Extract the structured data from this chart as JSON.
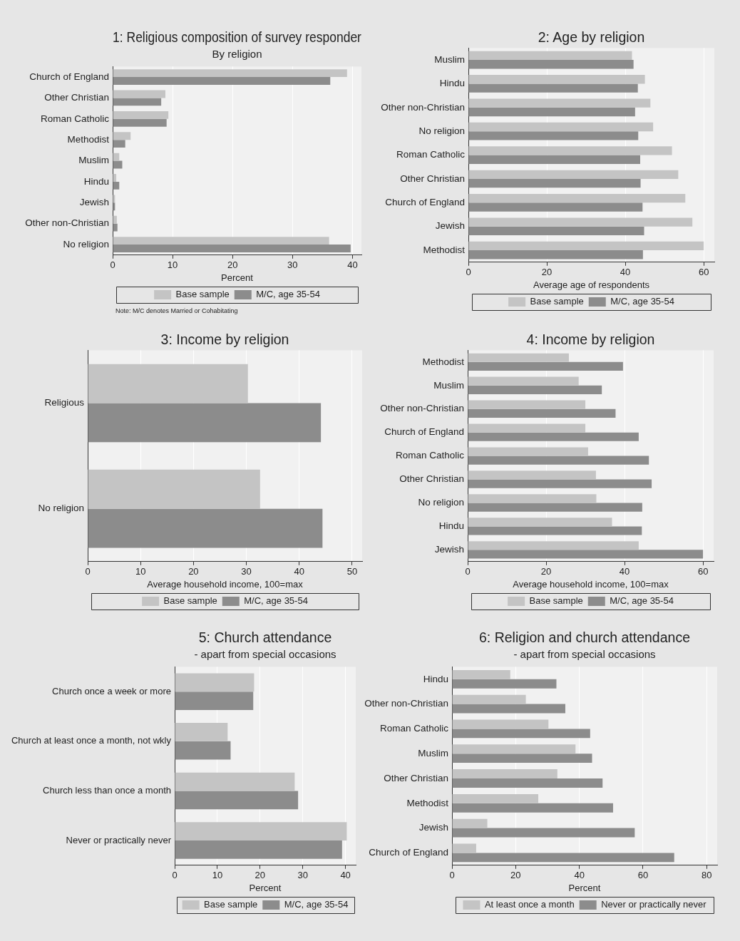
{
  "chart_data": [
    {
      "type": "bar",
      "orientation": "horizontal",
      "title": "1: Religious composition of survey responder",
      "subtitle": "By religion",
      "xlabel": "Percent",
      "categories": [
        "Church of England",
        "Other Christian",
        "Roman Catholic",
        "Methodist",
        "Muslim",
        "Hindu",
        "Jewish",
        "Other non-Christian",
        "No religion"
      ],
      "series": [
        {
          "name": "Base sample",
          "color": "#c4c4c4",
          "values": [
            39.1,
            8.8,
            9.3,
            3.0,
            1.1,
            0.6,
            0.4,
            0.7,
            36.1
          ]
        },
        {
          "name": "M/C, age 35-54",
          "color": "#8c8c8c",
          "values": [
            36.3,
            8.1,
            9.0,
            2.1,
            1.6,
            1.1,
            0.4,
            0.8,
            39.7
          ]
        }
      ],
      "xlim": [
        0,
        41.5
      ],
      "xticks": [
        0,
        10,
        20,
        30,
        40
      ],
      "grid": "x",
      "legend": "bottom",
      "annotations": [
        "Note: M/C denotes Married or Cohabitating"
      ]
    },
    {
      "type": "bar",
      "orientation": "horizontal",
      "title": "2: Age by religion",
      "xlabel": "Average age of respondents",
      "categories": [
        "Muslim",
        "Hindu",
        "Other non-Christian",
        "No religion",
        "Roman Catholic",
        "Other Christian",
        "Church of England",
        "Jewish",
        "Methodist"
      ],
      "series": [
        {
          "name": "Base sample",
          "color": "#c4c4c4",
          "values": [
            41.7,
            45.0,
            46.4,
            47.1,
            51.9,
            53.5,
            55.3,
            57.1,
            60.0
          ]
        },
        {
          "name": "M/C, age 35-54",
          "color": "#8c8c8c",
          "values": [
            42.1,
            43.2,
            42.5,
            43.3,
            43.8,
            43.9,
            44.4,
            44.8,
            44.5
          ]
        }
      ],
      "xlim": [
        0,
        62.7
      ],
      "xticks": [
        0,
        20,
        40,
        60
      ],
      "grid": "x",
      "legend": "bottom"
    },
    {
      "type": "bar",
      "orientation": "horizontal",
      "title": "3: Income by religion",
      "xlabel": "Average household income, 100=max",
      "categories": [
        "Religious",
        "No religion"
      ],
      "series": [
        {
          "name": "Base sample",
          "color": "#c4c4c4",
          "values": [
            30.3,
            32.6
          ]
        },
        {
          "name": "M/C, age 35-54",
          "color": "#8c8c8c",
          "values": [
            44.1,
            44.4
          ]
        }
      ],
      "xlim": [
        0,
        51.9
      ],
      "xticks": [
        0,
        10,
        20,
        30,
        40,
        50
      ],
      "grid": "x",
      "legend": "bottom"
    },
    {
      "type": "bar",
      "orientation": "horizontal",
      "title": "4: Income by religion",
      "xlabel": "Average household income, 100=max",
      "categories": [
        "Methodist",
        "Muslim",
        "Other non-Christian",
        "Church of England",
        "Roman Catholic",
        "Other Christian",
        "No religion",
        "Hindu",
        "Jewish"
      ],
      "series": [
        {
          "name": "Base sample",
          "color": "#c4c4c4",
          "values": [
            25.8,
            28.3,
            30.0,
            30.0,
            30.7,
            32.7,
            32.8,
            36.8,
            43.6
          ]
        },
        {
          "name": "M/C, age 35-54",
          "color": "#8c8c8c",
          "values": [
            39.6,
            34.2,
            37.7,
            43.6,
            46.2,
            46.9,
            44.5,
            44.4,
            60.0
          ]
        }
      ],
      "xlim": [
        0,
        62.7
      ],
      "xticks": [
        0,
        20,
        40,
        60
      ],
      "grid": "x",
      "legend": "bottom"
    },
    {
      "type": "bar",
      "orientation": "horizontal",
      "title": "5: Church attendance",
      "subtitle": "- apart from special occasions",
      "xlabel": "Percent",
      "categories": [
        "Church once a week or more",
        "Church at least once a month, not wkly",
        "Church less than once a month",
        "Never or practically never"
      ],
      "series": [
        {
          "name": "Base sample",
          "color": "#c4c4c4",
          "values": [
            18.6,
            12.4,
            28.1,
            40.3
          ]
        },
        {
          "name": "M/C, age 35-54",
          "color": "#8c8c8c",
          "values": [
            18.4,
            13.1,
            28.9,
            39.2
          ]
        }
      ],
      "xlim": [
        0,
        42.4
      ],
      "xticks": [
        0,
        10,
        20,
        30,
        40
      ],
      "grid": "x",
      "legend": "bottom"
    },
    {
      "type": "bar",
      "orientation": "horizontal",
      "title": "6: Religion and church attendance",
      "subtitle": "- apart from special occasions",
      "xlabel": "Percent",
      "categories": [
        "Hindu",
        "Other non-Christian",
        "Roman Catholic",
        "Muslim",
        "Other Christian",
        "Methodist",
        "Jewish",
        "Church of England"
      ],
      "series": [
        {
          "name": "At least once a month",
          "color": "#c4c4c4",
          "values": [
            18.3,
            23.2,
            30.3,
            38.8,
            33.1,
            27.1,
            11.1,
            7.6
          ]
        },
        {
          "name": "Never or practically never",
          "color": "#8c8c8c",
          "values": [
            32.8,
            35.6,
            43.4,
            44.0,
            47.3,
            50.6,
            57.4,
            69.8
          ]
        }
      ],
      "xlim": [
        0,
        83.3
      ],
      "xticks": [
        0,
        20,
        40,
        60,
        80
      ],
      "grid": "x",
      "legend": "bottom"
    }
  ]
}
